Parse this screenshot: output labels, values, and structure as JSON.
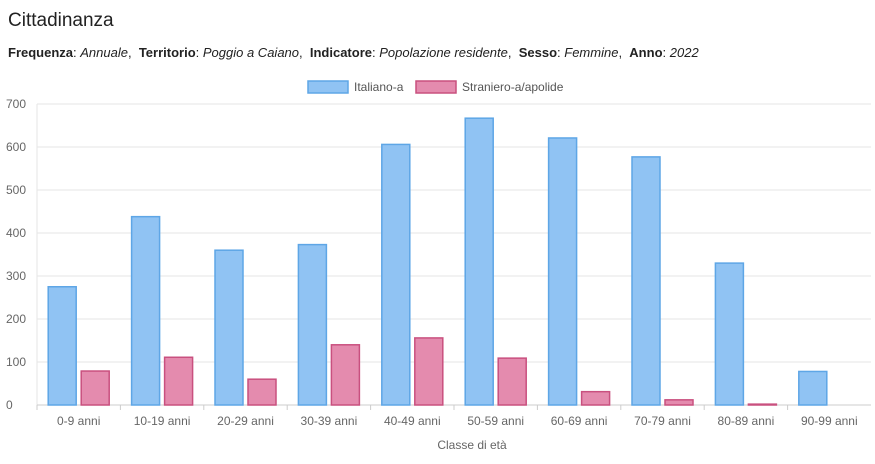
{
  "header": {
    "title": "Cittadinanza",
    "filters": [
      {
        "key": "Frequenza",
        "value": "Annuale"
      },
      {
        "key": "Territorio",
        "value": "Poggio a Caiano"
      },
      {
        "key": "Indicatore",
        "value": "Popolazione residente"
      },
      {
        "key": "Sesso",
        "value": "Femmine"
      },
      {
        "key": "Anno",
        "value": "2022"
      }
    ]
  },
  "chart_data": {
    "type": "bar",
    "xlabel": "Classe di età",
    "ylabel": "",
    "ylim": [
      0,
      700
    ],
    "yticks": [
      0,
      100,
      200,
      300,
      400,
      500,
      600,
      700
    ],
    "grid": true,
    "legend_position": "top-center",
    "categories": [
      "0-9 anni",
      "10-19 anni",
      "20-29 anni",
      "30-39 anni",
      "40-49 anni",
      "50-59 anni",
      "60-69 anni",
      "70-79 anni",
      "80-89 anni",
      "90-99 anni"
    ],
    "series": [
      {
        "name": "Italiano-a",
        "color": "#90c3f3",
        "border": "#5ea6e6",
        "values": [
          275,
          438,
          360,
          373,
          606,
          667,
          621,
          577,
          330,
          78
        ]
      },
      {
        "name": "Straniero-a/apolide",
        "color": "#e48bae",
        "border": "#c9507f",
        "values": [
          79,
          111,
          60,
          140,
          156,
          109,
          31,
          12,
          2,
          0
        ]
      }
    ]
  }
}
